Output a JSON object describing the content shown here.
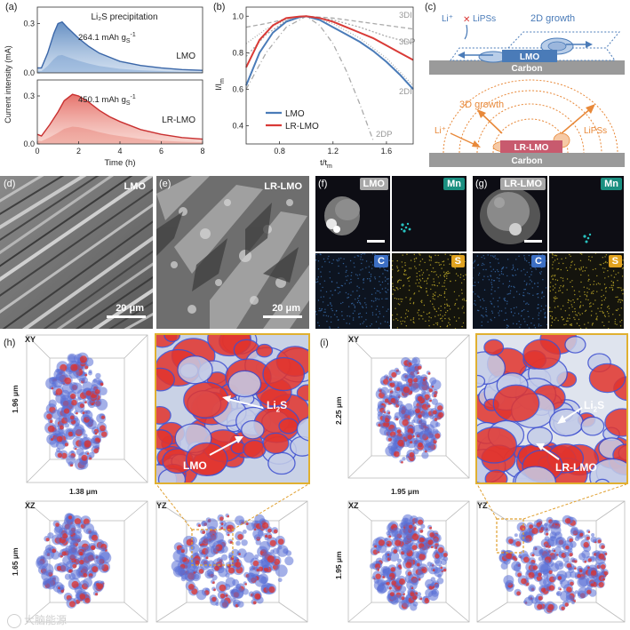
{
  "panel_letters": [
    "(a)",
    "(b)",
    "(c)",
    "(d)",
    "(e)",
    "(f)",
    "(g)",
    "(h)",
    "(i)"
  ],
  "colors": {
    "lmo": "#4a7bb8",
    "lrlmo": "#d93a36",
    "carbon": "#9a9a9a",
    "orange": "#e8893a",
    "em_bg": "#0d0d14",
    "sem_bg": "#6b6b6b",
    "badge_mn": "#1a8f80",
    "badge_c": "#3c6fc4",
    "badge_s": "#e0a21f",
    "badge_gray": "#a8a8a8"
  },
  "panel_a": {
    "chart_data": {
      "type": "area",
      "xlabel": "Time (h)",
      "ylabel": "Current intensity (mA)",
      "xlim": [
        0,
        8
      ],
      "x_ticks": [
        "0",
        "2",
        "4",
        "6",
        "8"
      ],
      "top": {
        "title": "Li₂S precipitation",
        "label": "LMO",
        "capacity": "264.1 mAh g",
        "capacity_unit_sub": "S",
        "capacity_unit_sup": "-1",
        "y_ticks": [
          "0.0",
          "0.3"
        ],
        "ylim": [
          0,
          0.4
        ],
        "x": [
          0,
          0.2,
          0.5,
          0.8,
          1.0,
          1.2,
          1.5,
          2,
          2.5,
          3,
          4,
          5,
          6,
          7,
          8
        ],
        "y": [
          0.03,
          0.03,
          0.12,
          0.24,
          0.3,
          0.31,
          0.27,
          0.21,
          0.16,
          0.12,
          0.07,
          0.045,
          0.03,
          0.02,
          0.015
        ]
      },
      "bottom": {
        "label": "LR-LMO",
        "capacity": "450.1 mAh g",
        "capacity_unit_sub": "S",
        "capacity_unit_sup": "-1",
        "y_ticks": [
          "0.0",
          "0.3"
        ],
        "ylim": [
          0,
          0.4
        ],
        "x": [
          0,
          0.2,
          0.6,
          1.0,
          1.3,
          1.7,
          2.0,
          2.5,
          3,
          3.5,
          4,
          5,
          6,
          7,
          8
        ],
        "y": [
          0.06,
          0.05,
          0.12,
          0.2,
          0.27,
          0.31,
          0.3,
          0.26,
          0.21,
          0.17,
          0.14,
          0.09,
          0.06,
          0.04,
          0.03
        ]
      }
    }
  },
  "panel_b": {
    "chart_data": {
      "type": "line",
      "xlabel": "t/t",
      "xlabel_sub": "m",
      "ylabel": "I/I",
      "ylabel_sub": "m",
      "xlim": [
        0.55,
        1.8
      ],
      "ylim": [
        0.3,
        1.05
      ],
      "x_ticks": [
        "0.8",
        "1.2",
        "1.6"
      ],
      "y_ticks": [
        "0.4",
        "0.6",
        "0.8",
        "1.0"
      ],
      "series": [
        {
          "name": "LMO",
          "x": [
            0.55,
            0.65,
            0.75,
            0.85,
            0.95,
            1.0,
            1.1,
            1.2,
            1.3,
            1.4,
            1.5,
            1.6,
            1.7,
            1.8
          ],
          "y": [
            0.62,
            0.8,
            0.91,
            0.97,
            0.995,
            1.0,
            0.98,
            0.94,
            0.9,
            0.86,
            0.81,
            0.75,
            0.68,
            0.6
          ]
        },
        {
          "name": "LR-LMO",
          "x": [
            0.55,
            0.65,
            0.75,
            0.85,
            0.95,
            1.0,
            1.1,
            1.2,
            1.3,
            1.4,
            1.5,
            1.6,
            1.7,
            1.8
          ],
          "y": [
            0.72,
            0.87,
            0.95,
            0.99,
            0.998,
            1.0,
            0.99,
            0.97,
            0.94,
            0.91,
            0.88,
            0.84,
            0.8,
            0.76
          ]
        }
      ],
      "model_curves": [
        {
          "name": "3DI",
          "x": [
            0.55,
            0.7,
            0.85,
            1.0,
            1.2,
            1.4,
            1.6,
            1.8
          ],
          "y": [
            0.94,
            0.96,
            0.985,
            1.0,
            0.99,
            0.97,
            0.95,
            0.93
          ]
        },
        {
          "name": "3DP",
          "x": [
            0.55,
            0.7,
            0.85,
            1.0,
            1.2,
            1.4,
            1.6,
            1.8
          ],
          "y": [
            0.78,
            0.9,
            0.975,
            1.0,
            0.98,
            0.94,
            0.89,
            0.85
          ]
        },
        {
          "name": "2DI",
          "x": [
            0.55,
            0.7,
            0.85,
            1.0,
            1.2,
            1.4,
            1.6,
            1.8
          ],
          "y": [
            0.85,
            0.93,
            0.98,
            1.0,
            0.96,
            0.88,
            0.77,
            0.62
          ]
        },
        {
          "name": "2DP",
          "x": [
            0.55,
            0.7,
            0.85,
            1.0,
            1.1,
            1.2,
            1.3,
            1.4,
            1.5
          ],
          "y": [
            0.6,
            0.8,
            0.94,
            1.0,
            0.95,
            0.85,
            0.7,
            0.52,
            0.32
          ]
        }
      ]
    }
  },
  "panel_c": {
    "top": {
      "li": "Li⁺",
      "lipss": "LiPSs",
      "growth": "2D growth",
      "particle": "LMO",
      "substrate": "Carbon"
    },
    "bottom": {
      "li": "Li⁺",
      "lipss": "LiPSs",
      "growth": "3D growth",
      "particle": "LR-LMO",
      "substrate": "Carbon"
    }
  },
  "panel_d": {
    "label": "LMO",
    "scale": "20 μm"
  },
  "panel_e": {
    "label": "LR-LMO",
    "scale": "20 μm"
  },
  "panel_f": {
    "tiles": [
      "LMO",
      "Mn",
      "C",
      "S"
    ]
  },
  "panel_g": {
    "tiles": [
      "LR-LMO",
      "Mn",
      "C",
      "S"
    ]
  },
  "panel_h": {
    "xy": "XY",
    "xz": "XZ",
    "yz": "YZ",
    "dim_xy_v": "1.96 μm",
    "dim_xy_h": "1.38 μm",
    "dim_xz_v": "1.65 μm",
    "zoom_li2s": "Li",
    "zoom_li2s_sub": "2",
    "zoom_li2s_tail": "S",
    "zoom_lmo": "LMO"
  },
  "panel_i": {
    "xy": "XY",
    "xz": "XZ",
    "yz": "YZ",
    "dim_xy_v": "2.25 μm",
    "dim_xy_h": "1.95 μm",
    "dim_xz_v": "1.95 μm",
    "zoom_li2s": "Li",
    "zoom_li2s_sub": "2",
    "zoom_li2s_tail": "S",
    "zoom_lmo": "LR-LMO"
  },
  "watermark": "大脑能源"
}
